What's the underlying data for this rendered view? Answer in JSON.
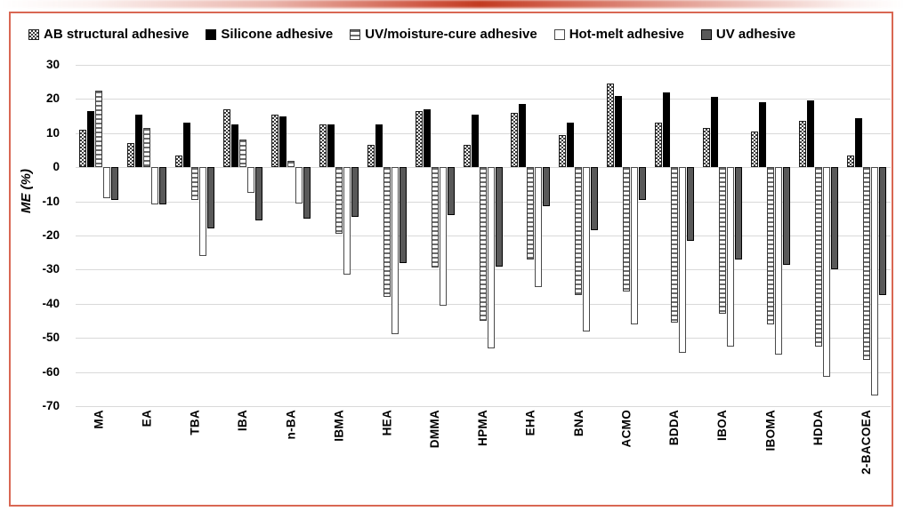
{
  "frame": {
    "border_color": "#d96753",
    "accent_color": "#c23a20",
    "background": "#ffffff",
    "gridline_color": "#d9d9d9"
  },
  "legend": [
    {
      "label": "AB structural adhesive",
      "pattern": "checker"
    },
    {
      "label": "Silicone adhesive",
      "pattern": "solid-black"
    },
    {
      "label": "UV/moisture-cure adhesive",
      "pattern": "hstripe"
    },
    {
      "label": "Hot-melt adhesive",
      "pattern": "white"
    },
    {
      "label": "UV adhesive",
      "pattern": "gray"
    }
  ],
  "chart_data": {
    "type": "bar",
    "title": "",
    "xlabel": "",
    "ylabel": "ME (%)",
    "ylim": [
      -70,
      30
    ],
    "yticks": [
      30,
      20,
      10,
      0,
      -10,
      -20,
      -30,
      -40,
      -50,
      -60,
      -70
    ],
    "grid": true,
    "legend_position": "top",
    "categories": [
      "MA",
      "EA",
      "TBA",
      "IBA",
      "n-BA",
      "IBMA",
      "HEA",
      "DMMA",
      "HPMA",
      "EHA",
      "BNA",
      "ACMO",
      "BDDA",
      "IBOA",
      "IBOMA",
      "HDDA",
      "2-BACOEA"
    ],
    "series": [
      {
        "name": "AB structural adhesive",
        "pattern": "checker",
        "values": [
          11,
          7,
          3.5,
          17,
          15.5,
          12.5,
          6.5,
          16.5,
          6.5,
          16,
          9.5,
          24.5,
          13,
          11.5,
          10.5,
          13.5,
          3.5
        ]
      },
      {
        "name": "Silicone adhesive",
        "pattern": "solid-black",
        "values": [
          16.5,
          15.5,
          13,
          12.5,
          15,
          12.5,
          12.5,
          17,
          15.5,
          18.5,
          13,
          21,
          22,
          20.5,
          19,
          19.5,
          14.5
        ]
      },
      {
        "name": "UV/moisture-cure adhesive",
        "pattern": "hstripe",
        "values": [
          22.5,
          11.5,
          -9.5,
          8,
          2,
          -19.5,
          -38,
          -29.5,
          -45,
          -27,
          -37.5,
          -36.5,
          -45.5,
          -43,
          -46,
          -52.5,
          -56.5
        ]
      },
      {
        "name": "Hot-melt adhesive",
        "pattern": "white",
        "values": [
          -9,
          -11,
          -26,
          -7.5,
          -10.5,
          -31.5,
          -49,
          -40.5,
          -53,
          -35,
          -48,
          -46,
          -54.5,
          -52.5,
          -55,
          -61.5,
          -67
        ]
      },
      {
        "name": "UV adhesive",
        "pattern": "gray",
        "values": [
          -9.5,
          -11,
          -18,
          -15.5,
          -15,
          -14.5,
          -28,
          -14,
          -29,
          -11.5,
          -18.5,
          -9.5,
          -21.5,
          -27,
          -28.5,
          -30,
          -37.5
        ]
      }
    ]
  }
}
